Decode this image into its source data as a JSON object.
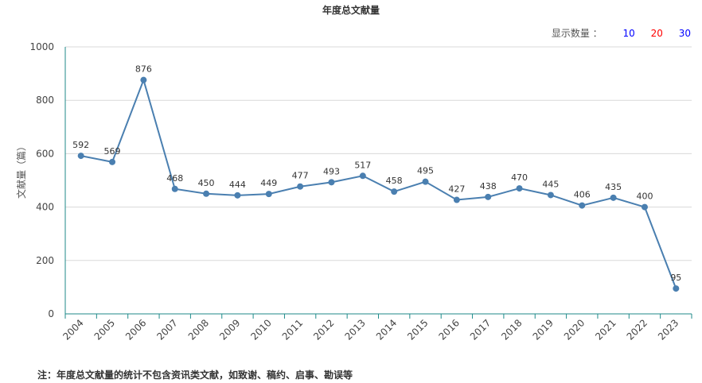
{
  "header": {
    "title": "年度总文献量",
    "count_label": "显示数量 ：",
    "count_options": [
      {
        "label": "10",
        "color": "#0000ff"
      },
      {
        "label": "20",
        "color": "#ff0000"
      },
      {
        "label": "30",
        "color": "#0000ff"
      }
    ]
  },
  "footer": {
    "note": "注：年度总文献量的统计不包含资讯类文献，如致谢、稿约、启事、勘误等"
  },
  "chart_data": {
    "type": "line",
    "title": "年度总文献量",
    "xlabel": "",
    "ylabel": "文献量（篇）",
    "x": [
      "2004",
      "2005",
      "2006",
      "2007",
      "2008",
      "2009",
      "2010",
      "2011",
      "2012",
      "2013",
      "2014",
      "2015",
      "2016",
      "2017",
      "2018",
      "2019",
      "2020",
      "2021",
      "2022",
      "2023"
    ],
    "values": [
      592,
      569,
      876,
      468,
      450,
      444,
      449,
      477,
      493,
      517,
      458,
      495,
      427,
      438,
      470,
      445,
      406,
      435,
      400,
      95
    ],
    "ylim": [
      0,
      1000
    ],
    "yticks": [
      0,
      200,
      400,
      600,
      800,
      1000
    ],
    "grid": true,
    "legend": "none",
    "line_color": "#4a7fb0",
    "axis_color": "#1f8a8a"
  }
}
